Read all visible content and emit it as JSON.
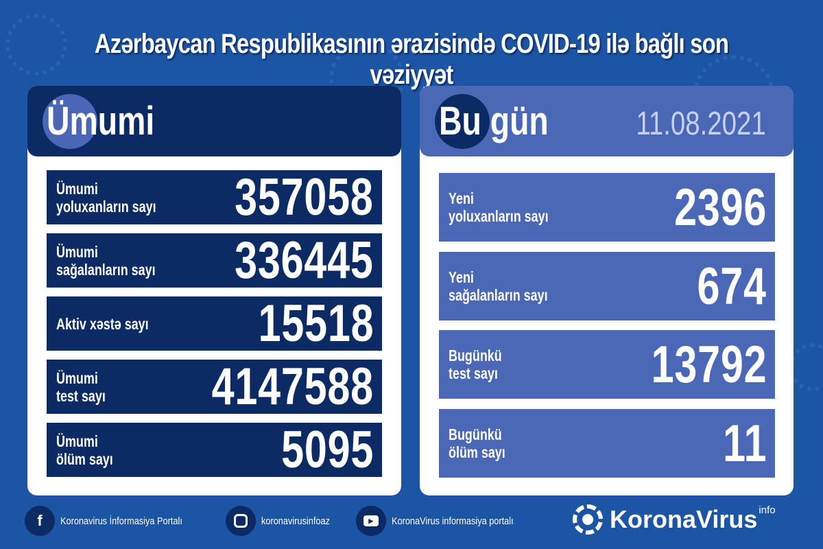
{
  "title": "Azərbaycan Respublikasının ərazisində COVID-19 ilə bağlı son vəziyyət",
  "total": {
    "heading": "Ümumi",
    "rows": [
      {
        "label1": "Ümumi",
        "label2": "yoluxanların sayı",
        "value": "357058"
      },
      {
        "label1": "Ümumi",
        "label2": "sağalanların sayı",
        "value": "336445"
      },
      {
        "label1": "Aktiv xəstə sayı",
        "label2": "",
        "value": "15518"
      },
      {
        "label1": "Ümumi",
        "label2": "test sayı",
        "value": "4147588"
      },
      {
        "label1": "Ümumi",
        "label2": "ölüm sayı",
        "value": "5095"
      }
    ]
  },
  "today": {
    "heading": "Bu gün",
    "date": "11.08.2021",
    "rows": [
      {
        "label1": "Yeni",
        "label2": "yoluxanların sayı",
        "value": "2396"
      },
      {
        "label1": "Yeni",
        "label2": "sağalanların sayı",
        "value": "674"
      },
      {
        "label1": "Bugünkü",
        "label2": "test sayı",
        "value": "13792"
      },
      {
        "label1": "Bugünkü",
        "label2": "ölüm sayı",
        "value": "11"
      }
    ]
  },
  "footer": {
    "links": [
      {
        "icon": "facebook-icon",
        "text": "Koronavirus İnformasiya Portalı"
      },
      {
        "icon": "instagram-icon",
        "text": "koronavirusinfoaz"
      },
      {
        "icon": "youtube-icon",
        "text": "KoronaVirus informasiya portalı"
      }
    ],
    "logo_name": "KoronaVirus",
    "logo_sup": "info"
  },
  "colors": {
    "background": "#1d55a5",
    "navy": "#0c2a63",
    "today_blue": "#4b68b7"
  }
}
